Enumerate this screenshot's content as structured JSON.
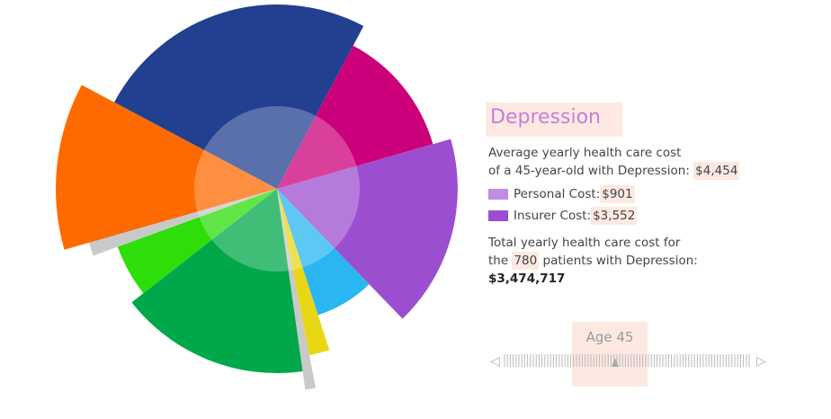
{
  "panel": {
    "title": "Depression",
    "desc_line1": "Average yearly health care cost",
    "desc_line2_prefix": "of a 45-year-old with Depression: ",
    "avg_cost": "$4,454",
    "personal_label": "Personal Cost: ",
    "personal_value": "$901",
    "insurer_label": "Insurer Cost: ",
    "insurer_value": "$3,552",
    "total_line1": "Total yearly health care cost for",
    "total_prefix": "the ",
    "patients": "780",
    "total_suffix": " patients with Depression:",
    "total_value": "$3,474,717",
    "personal_color": "#c08ee0",
    "insurer_color": "#9b4fd0"
  },
  "slider": {
    "label": "Age 45",
    "left_arrow": "◁",
    "right_arrow": "▷"
  },
  "chart_data": {
    "type": "pie",
    "description": "polar area / rose chart of conditions (sector colors)",
    "sectors": [
      {
        "color": "#22408f",
        "relative_radius": 1.0
      },
      {
        "color": "#cc007a",
        "relative_radius": 0.88
      },
      {
        "color": "#9b4fd0",
        "relative_radius": 0.98
      },
      {
        "color": "#29b6f1",
        "relative_radius": 0.72
      },
      {
        "color": "#e8d714",
        "relative_radius": 0.92
      },
      {
        "color": "#c9c9c9",
        "relative_radius": 1.1
      },
      {
        "color": "#00a84a",
        "relative_radius": 1.0
      },
      {
        "color": "#2ede0a",
        "relative_radius": 0.92
      },
      {
        "color": "#c9c9c9",
        "relative_radius": 1.06
      },
      {
        "color": "#ff6a00",
        "relative_radius": 1.2
      }
    ]
  }
}
